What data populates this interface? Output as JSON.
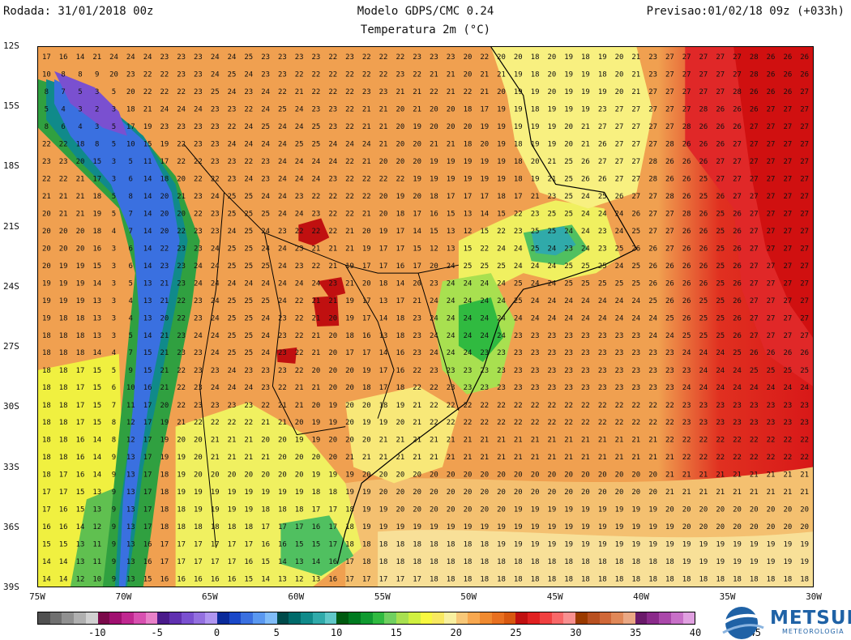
{
  "header": {
    "run": "Rodada: 31/01/2018 00z",
    "model": "Modelo GDPS/CMC 0.24",
    "forecast": "Previsao:01/02/18 09z (+033h)",
    "field": "Temperatura 2m (°C)"
  },
  "lat_labels": [
    "12S",
    "15S",
    "18S",
    "21S",
    "24S",
    "27S",
    "30S",
    "33S",
    "36S",
    "39S"
  ],
  "lon_labels": [
    "75W",
    "70W",
    "65W",
    "60W",
    "55W",
    "50W",
    "45W",
    "40W",
    "35W",
    "30W"
  ],
  "colorbar": {
    "labels": [
      "-10",
      "-5",
      "0",
      "5",
      "10",
      "15",
      "20",
      "25",
      "30",
      "35",
      "40",
      "45"
    ],
    "colors": [
      "#505050",
      "#707070",
      "#909090",
      "#b0b0b0",
      "#d0d0d0",
      "#7a0a4a",
      "#a01070",
      "#c02890",
      "#d850b0",
      "#e880c8",
      "#4a1a8a",
      "#6030b0",
      "#7a50d0",
      "#9470e0",
      "#b095f0",
      "#0a2a9a",
      "#1a48c8",
      "#3a70e0",
      "#5a98f0",
      "#80bcf8",
      "#004a4a",
      "#006a6a",
      "#108a8a",
      "#30aaaa",
      "#60c8c8",
      "#005a10",
      "#007a20",
      "#109a30",
      "#30ba40",
      "#70d060",
      "#a8e050",
      "#d0f040",
      "#f8f840",
      "#f8e860",
      "#f8f0a0",
      "#f8c878",
      "#f8a850",
      "#f08a30",
      "#e87020",
      "#d85810",
      "#c01010",
      "#e02020",
      "#f04040",
      "#f86868",
      "#f89090",
      "#9a3a00",
      "#b85020",
      "#d06838",
      "#e08858",
      "#eaa884",
      "#6a1a6a",
      "#8a2a8a",
      "#aa48aa",
      "#c870c8",
      "#e0a0e0"
    ]
  },
  "logo": {
    "name": "METSUL",
    "subtitle": "METEOROLOGIA"
  },
  "grid_values": [
    "17 16 14 21 24 24 24 23 23 23 24 24 25 23 23 23 23 22 23 22 22 22 23 23 23 20 22 20 20 18 20 19 18 19 20 21 23 27 27 27 27 27 28 26 26 26",
    "10 8 8 9 20 23 22 22 23 23 24 25 24 23 23 22 22 22 22 22 22 23 22 21 21 20 21 21 19 18 20 19 19 18 20 21 23 27 27 27 27 27 28 26 26 26",
    "8 7 5 3 5 20 22 22 22 23 25 24 23 24 22 21 22 22 22 23 23 21 21 22 21 22 21 20 19 19 20 19 19 19 20 21 27 27 27 27 27 28 26 26 26 27",
    "5 4 3 2 3 18 21 24 24 24 23 23 22 24 25 24 23 23 22 21 21 20 21 20 20 18 17 19 19 18 19 19 19 23 27 27 27 27 27 28 26 26 26 27 27 27",
    "8 6 4 3 5 17 19 23 23 23 23 22 24 25 24 24 25 23 22 21 21 20 19 20 20 20 19 19 19 19 19 20 21 27 27 27 27 27 28 26 26 26 27 27 27 27",
    "22 22 18 8 5 10 15 19 22 23 23 24 24 24 24 25 25 24 24 24 21 20 20 21 21 18 20 19 18 19 19 20 21 26 27 27 27 28 26 26 26 27 27 27 27 27",
    "23 23 20 15 3 5 11 17 22 22 23 23 22 23 24 24 24 24 22 21 20 20 20 19 19 19 19 19 18 20 21 25 26 27 27 27 28 26 26 26 27 27 27 27 27 27",
    "22 22 21 17 3 6 14 18 20 22 22 23 24 23 24 24 24 23 22 22 22 22 19 19 19 19 19 19 18 19 21 25 26 26 27 27 28 26 26 25 27 27 27 27 27 27",
    "21 21 21 18 5 8 14 20 21 23 24 25 25 24 24 23 22 22 22 22 20 19 20 18 17 17 17 18 17 21 23 25 24 25 26 27 27 28 26 25 26 27 27 27 27 27",
    "20 21 21 19 5 7 14 20 20 22 23 25 25 25 24 24 23 22 22 21 20 18 17 16 15 13 14 15 22 23 25 25 24 24 24 26 27 27 28 26 25 26 27 27 27 27",
    "20 20 20 18 4 7 14 20 22 23 23 24 25 24 23 22 22 22 21 20 19 17 14 15 13 12 15 22 23 25 25 24 24 23 24 25 27 27 26 26 25 26 27 27 27 27",
    "20 20 20 16 3 6 14 22 23 23 24 25 25 24 24 23 21 21 21 19 17 17 15 12 13 15 22 24 24 25 24 23 24 23 25 26 26 27 26 26 25 26 27 27 27 27",
    "20 19 19 15 3 6 14 23 23 24 24 25 25 25 24 23 22 21 19 17 17 16 17 20 24 25 25 25 24 24 24 25 25 25 24 25 26 26 26 26 25 26 27 27 27 27",
    "19 19 19 14 3 5 13 21 23 24 24 24 24 24 24 24 24 23 21 20 18 14 20 23 24 24 24 24 25 24 24 25 25 25 25 25 26 26 26 26 25 26 27 27 27 27",
    "19 19 19 13 3 4 13 21 22 23 24 25 25 25 24 22 21 21 19 17 13 17 21 24 24 24 24 24 25 24 24 24 24 24 24 24 25 26 26 25 25 26 27 27 27 27",
    "19 18 18 13 3 4 13 20 22 23 24 25 25 24 23 22 21 20 19 17 14 18 23 24 24 24 24 24 24 24 24 24 24 24 24 24 24 25 26 25 25 26 27 27 27 27",
    "18 18 18 13 3 5 14 21 23 24 24 25 25 24 23 22 21 20 18 16 13 18 23 24 24 24 24 24 23 23 23 23 23 23 23 23 24 24 25 25 25 26 27 27 27 27",
    "18 18 18 14 4 7 15 21 23 23 24 25 25 24 23 22 21 20 17 17 14 16 23 24 24 24 23 23 23 23 23 23 23 23 23 23 23 23 24 24 24 25 26 26 26 26",
    "18 18 17 15 5 9 15 21 22 23 23 24 23 23 23 22 20 20 20 19 17 16 22 23 23 23 23 23 23 23 23 23 23 23 23 23 23 23 23 24 24 24 25 25 25 25",
    "18 18 17 15 6 10 16 21 22 23 24 24 24 23 22 21 21 20 20 18 17 18 22 22 23 23 23 23 23 23 23 23 23 23 23 23 23 23 24 24 24 24 24 24 24 24",
    "18 18 17 15 7 11 17 20 22 23 23 23 23 22 21 21 20 19 20 20 18 19 21 22 22 22 22 22 22 22 22 22 22 22 22 22 22 22 23 23 23 23 23 23 23 23",
    "18 18 17 15 8 12 17 19 21 22 22 22 22 21 21 20 19 19 20 19 19 20 21 22 22 22 22 22 22 22 22 22 22 22 22 22 22 22 23 23 23 23 23 23 23 23",
    "18 18 16 14 8 12 17 19 20 20 21 21 21 20 20 19 19 20 20 20 21 21 21 21 21 21 21 21 21 21 21 21 21 21 21 21 21 22 22 22 22 22 22 22 22 22",
    "18 18 16 14 9 13 17 19 19 20 21 21 21 21 20 20 20 20 21 21 21 21 21 21 21 21 21 21 21 21 21 21 21 21 21 21 21 21 22 22 22 22 22 22 22 22",
    "18 17 16 14 9 13 17 18 19 20 20 20 20 20 20 20 19 19 19 20 20 20 20 20 20 20 20 20 20 20 20 20 20 20 20 20 20 21 21 21 21 21 21 21 21 21",
    "17 17 15 13 9 13 17 18 19 19 19 19 19 19 19 19 18 18 19 19 20 20 20 20 20 20 20 20 20 20 20 20 20 20 20 20 20 21 21 21 21 21 21 21 21 21",
    "17 16 15 13 9 13 17 18 18 19 19 19 19 18 18 18 17 17 18 19 19 20 20 20 20 20 20 20 19 19 19 19 19 19 19 19 19 20 20 20 20 20 20 20 20 20",
    "16 16 14 12 9 13 17 18 18 18 18 18 18 17 17 17 16 17 18 19 19 19 19 19 19 19 19 19 19 19 19 19 19 19 19 19 19 19 20 20 20 20 20 20 20 20",
    "15 15 13 11 9 13 16 17 17 17 17 17 17 16 16 15 15 17 18 18 18 18 18 18 18 18 18 19 19 19 19 19 19 19 19 19 19 19 19 19 19 19 19 19 19 19",
    "14 14 13 11 9 13 16 17 17 17 17 17 16 15 14 13 14 16 17 18 18 18 18 18 18 18 18 18 18 18 18 18 18 18 18 18 18 18 19 19 19 19 19 19 19 19",
    "14 14 12 10 9 13 15 16 16 16 16 16 15 14 13 12 13 16 17 17 17 17 17 18 18 18 18 18 18 18 18 18 18 18 18 18 18 18 18 18 18 18 18 18 18 18"
  ]
}
